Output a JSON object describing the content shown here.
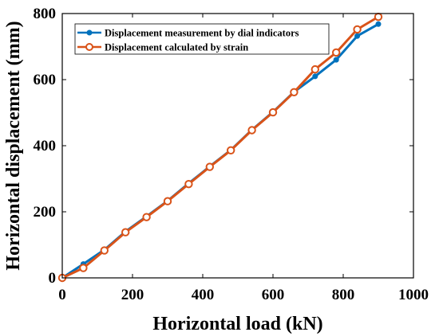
{
  "chart_data": {
    "type": "line",
    "xlabel": "Horizontal load (kN)",
    "ylabel": "Horizontal displacement (mm)",
    "xlim": [
      0,
      1000
    ],
    "ylim": [
      0,
      800
    ],
    "xticks": [
      0,
      200,
      400,
      600,
      800,
      1000
    ],
    "yticks": [
      0,
      200,
      400,
      600,
      800
    ],
    "grid": false,
    "legend_position": "top-left",
    "series": [
      {
        "name": "Displacement measurement by dial indicators",
        "color": "#0072BD",
        "marker": "filled-circle",
        "x": [
          0,
          60,
          120,
          180,
          240,
          300,
          360,
          420,
          480,
          540,
          600,
          660,
          720,
          780,
          840,
          900
        ],
        "y": [
          0,
          42,
          85,
          140,
          186,
          233,
          286,
          337,
          387,
          448,
          502,
          563,
          610,
          660,
          732,
          768
        ]
      },
      {
        "name": "Displacement calculated by strain",
        "color": "#D95319",
        "marker": "open-circle",
        "x": [
          0,
          60,
          120,
          180,
          240,
          300,
          360,
          420,
          480,
          540,
          600,
          660,
          720,
          780,
          840,
          900
        ],
        "y": [
          0,
          30,
          83,
          138,
          184,
          232,
          284,
          336,
          386,
          447,
          501,
          562,
          631,
          682,
          752,
          790
        ]
      }
    ]
  }
}
